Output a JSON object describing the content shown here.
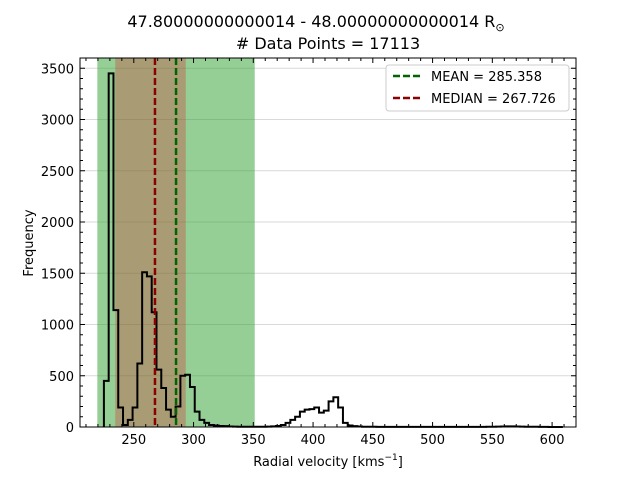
{
  "chart_data": {
    "type": "histogram",
    "title_line1": "47.80000000000014 - 48.00000000000014 R",
    "title_sun_symbol": "⊙",
    "title_line2": "# Data Points = 17113",
    "xlabel_main": "Radial velocity [kms",
    "xlabel_sup": "−1",
    "xlabel_end": "]",
    "ylabel": "Frequency",
    "xlim": [
      205,
      620
    ],
    "ylim": [
      0,
      3600
    ],
    "x_ticks": [
      250,
      300,
      350,
      400,
      450,
      500,
      550,
      600
    ],
    "y_ticks": [
      0,
      500,
      1000,
      1500,
      2000,
      2500,
      3000,
      3500
    ],
    "grid": "horizontal",
    "bands": [
      {
        "x0": 219.5,
        "x1": 351.2,
        "color": "#2ca02c",
        "opacity": 0.5
      },
      {
        "x0": 234.5,
        "x1": 293.5,
        "color": "#d62728",
        "opacity": 0.3
      }
    ],
    "mean": {
      "label": "MEAN = 285.358",
      "value": 285.358,
      "color": "#006400"
    },
    "median": {
      "label": "MEDIAN = 267.726",
      "value": 267.726,
      "color": "#8b0000"
    },
    "legend_position": "top-right",
    "bin_start": 225,
    "bin_width": 4,
    "counts": [
      450,
      3450,
      1140,
      190,
      20,
      70,
      190,
      620,
      1510,
      1470,
      1120,
      560,
      380,
      170,
      100,
      200,
      500,
      510,
      390,
      150,
      70,
      40,
      20,
      15,
      10,
      8,
      5,
      4,
      3,
      2,
      2,
      2,
      2,
      3,
      4,
      6,
      10,
      20,
      40,
      70,
      100,
      150,
      170,
      175,
      190,
      140,
      160,
      250,
      290,
      190,
      40,
      15,
      8,
      5,
      3,
      2,
      2,
      1,
      1,
      1,
      1,
      1,
      1,
      1,
      1,
      1,
      1,
      1,
      1,
      1,
      1,
      1,
      1,
      1,
      1,
      1,
      1,
      1,
      1,
      1,
      2,
      3,
      4,
      5,
      6,
      6,
      5,
      4,
      3,
      3,
      2,
      1,
      1,
      0,
      0,
      0
    ]
  }
}
